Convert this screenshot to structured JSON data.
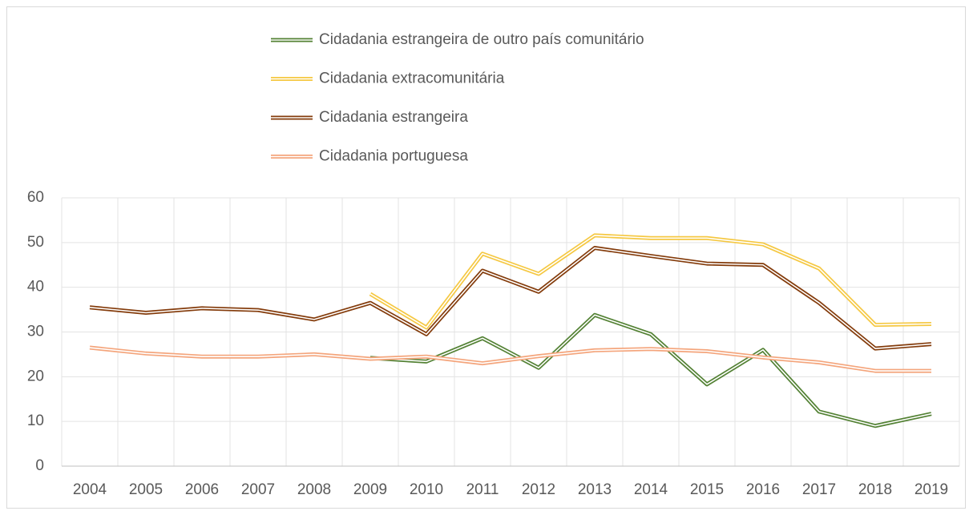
{
  "chart_data": {
    "type": "line",
    "categories": [
      "2004",
      "2005",
      "2006",
      "2007",
      "2008",
      "2009",
      "2010",
      "2011",
      "2012",
      "2013",
      "2014",
      "2015",
      "2016",
      "2017",
      "2018",
      "2019"
    ],
    "series": [
      {
        "name": "Cidadania estrangeira de outro país comunitário",
        "color": "#548235",
        "values": [
          null,
          null,
          null,
          null,
          null,
          24.2,
          23.4,
          28.6,
          22,
          33.8,
          29.5,
          18.3,
          26,
          12.2,
          9,
          11.7
        ]
      },
      {
        "name": "Cidadania extracomunitária",
        "color": "#f5c842",
        "values": [
          null,
          null,
          null,
          null,
          null,
          38.5,
          31,
          47.5,
          43,
          51.6,
          51,
          51,
          49.6,
          44.2,
          31.6,
          31.8
        ]
      },
      {
        "name": "Cidadania estrangeira",
        "color": "#843c0c",
        "values": [
          35.5,
          34.3,
          35.3,
          34.9,
          32.8,
          36.5,
          29.5,
          43.7,
          39,
          48.8,
          47,
          45.3,
          45,
          36.5,
          26.3,
          27.3
        ]
      },
      {
        "name": "Cidadania portuguesa",
        "color": "#f4a57c",
        "values": [
          26.5,
          25.2,
          24.5,
          24.5,
          25,
          24,
          24.5,
          23,
          24.6,
          25.9,
          26.2,
          25.7,
          24.3,
          23.2,
          21.3,
          21.3
        ]
      }
    ],
    "ylim": [
      0,
      60
    ],
    "yticks": [
      0,
      10,
      20,
      30,
      40,
      50,
      60
    ],
    "grid": true,
    "legend": "top"
  }
}
